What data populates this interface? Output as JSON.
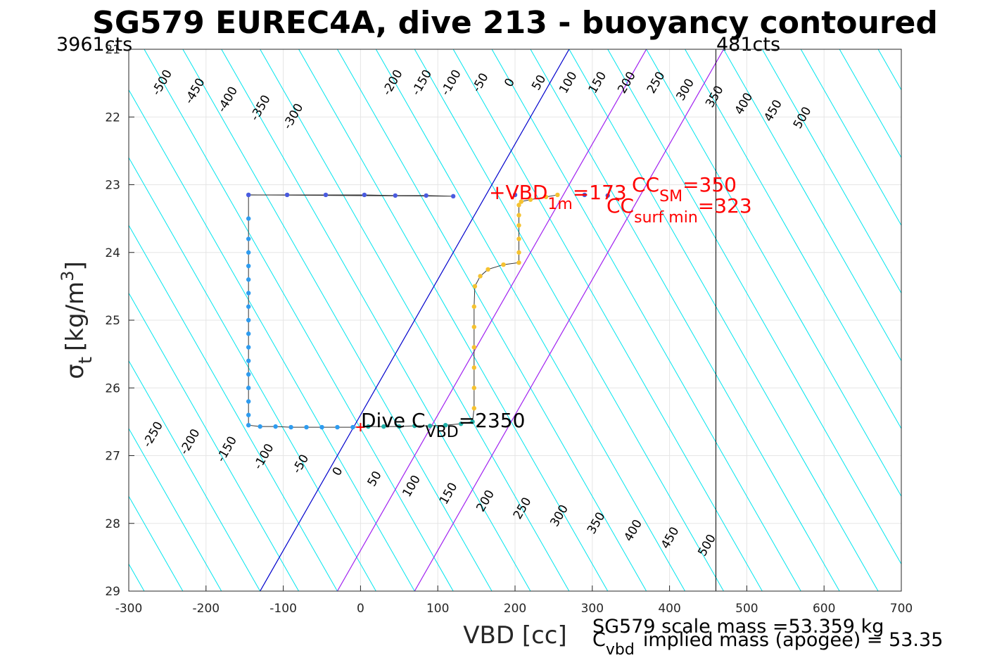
{
  "chart_data": {
    "type": "scatter",
    "title": "SG579 EUREC4A, dive 213 - buoyancy contoured",
    "xlabel": "VBD [cc]",
    "ylabel": {
      "symbol": "σ",
      "sub": "t",
      "units": "[kg/m",
      "sup": "3",
      "close": "]"
    },
    "xlim": [
      -300,
      700
    ],
    "ylim": [
      21,
      29
    ],
    "y_reversed": true,
    "grid": true,
    "x_ticks": [
      -300,
      -200,
      -100,
      0,
      100,
      200,
      300,
      400,
      500,
      600,
      700
    ],
    "y_ticks": [
      21,
      22,
      23,
      24,
      25,
      26,
      27,
      28,
      29
    ],
    "corner_labels": {
      "left": "3961cts",
      "right": "481cts"
    },
    "vbd_limit_line": 460,
    "contour_spacing": 50,
    "contour_slope_cc_per_kgm3": 50,
    "contour_labels_top": [
      -500,
      -450,
      -400,
      -350,
      -300,
      -200,
      -150,
      -100,
      -50,
      0,
      50,
      100,
      150,
      200,
      250,
      300,
      350,
      400,
      450,
      500
    ],
    "contour_labels_bottom": [
      -250,
      -200,
      -150,
      -100,
      -50,
      0,
      50,
      100,
      150,
      200,
      250,
      300,
      350,
      400,
      450,
      500
    ],
    "special_lines": [
      {
        "name": "neutral",
        "color": "#0000cc",
        "x_at_top": 270,
        "x_at_bottom": -130
      },
      {
        "name": "purple-1",
        "color": "#a020f0",
        "x_at_top": 370,
        "x_at_bottom": -30
      },
      {
        "name": "purple-2",
        "color": "#a020f0",
        "x_at_top": 470,
        "x_at_bottom": 70
      }
    ],
    "series": [
      {
        "name": "descent",
        "color": "#2e9cf0",
        "points": [
          [
            -145,
            23.15
          ],
          [
            -145,
            23.5
          ],
          [
            -145,
            23.8
          ],
          [
            -145,
            24.0
          ],
          [
            -145,
            24.2
          ],
          [
            -145,
            24.4
          ],
          [
            -145,
            24.6
          ],
          [
            -145,
            24.8
          ],
          [
            -145,
            25.0
          ],
          [
            -145,
            25.2
          ],
          [
            -145,
            25.4
          ],
          [
            -145,
            25.6
          ],
          [
            -145,
            25.8
          ],
          [
            -145,
            26.0
          ],
          [
            -145,
            26.2
          ],
          [
            -145,
            26.4
          ],
          [
            -145,
            26.55
          ],
          [
            -130,
            26.57
          ],
          [
            -110,
            26.57
          ],
          [
            -90,
            26.58
          ],
          [
            -70,
            26.58
          ],
          [
            -50,
            26.58
          ],
          [
            -30,
            26.58
          ],
          [
            -10,
            26.58
          ]
        ]
      },
      {
        "name": "bottom",
        "color": "#20b2aa",
        "points": [
          [
            10,
            26.57
          ],
          [
            30,
            26.57
          ],
          [
            50,
            26.57
          ],
          [
            70,
            26.56
          ],
          [
            90,
            26.56
          ],
          [
            110,
            26.55
          ],
          [
            130,
            26.53
          ],
          [
            145,
            26.5
          ]
        ]
      },
      {
        "name": "ascent",
        "color": "#f5c230",
        "points": [
          [
            147,
            26.3
          ],
          [
            147,
            26.0
          ],
          [
            147,
            25.7
          ],
          [
            147,
            25.4
          ],
          [
            147,
            25.1
          ],
          [
            147,
            24.8
          ],
          [
            148,
            24.5
          ],
          [
            155,
            24.35
          ],
          [
            165,
            24.25
          ],
          [
            185,
            24.18
          ],
          [
            205,
            24.15
          ],
          [
            205,
            24.0
          ],
          [
            205,
            23.8
          ],
          [
            205,
            23.6
          ],
          [
            205,
            23.45
          ],
          [
            205,
            23.3
          ],
          [
            208,
            23.25
          ],
          [
            220,
            23.22
          ],
          [
            240,
            23.18
          ],
          [
            255,
            23.15
          ]
        ]
      },
      {
        "name": "surface",
        "color": "#4a5be0",
        "points": [
          [
            -145,
            23.15
          ],
          [
            -95,
            23.15
          ],
          [
            -45,
            23.15
          ],
          [
            5,
            23.15
          ],
          [
            45,
            23.16
          ],
          [
            85,
            23.16
          ],
          [
            120,
            23.17
          ],
          [
            200,
            23.15
          ],
          [
            290,
            23.15
          ],
          [
            320,
            23.16
          ]
        ]
      }
    ],
    "marker_dive": {
      "x": 0,
      "y": 26.58,
      "color": "#ff0000"
    },
    "marker_vbd1m": {
      "x": 170,
      "y": 23.15,
      "color": "#ff0000"
    },
    "annotations": {
      "dive_c_main": "Dive C",
      "dive_c_sub": "VBD",
      "dive_c_value": "=2350",
      "vbd1m_main": "+VBD",
      "vbd1m_sub": "1m",
      "vbd1m_value": "=173",
      "ccsm_main": "CC",
      "ccsm_sub": "SM",
      "ccsm_value": "=350",
      "ccsurf_main": "CC",
      "ccsurf_sub": "surf min",
      "ccsurf_value": "=323"
    },
    "footer": {
      "scale_mass": "SG579 scale mass =53.359 kg",
      "implied_main": "C",
      "implied_sub": "vbd",
      "implied_text": "implied mass (apogee) = 53.35"
    },
    "colors": {
      "contour": "#00e5ee",
      "grid": "#e5e5e5",
      "track": "#333333",
      "annotation_red": "#ff0000",
      "limit_line": "#000000"
    }
  }
}
